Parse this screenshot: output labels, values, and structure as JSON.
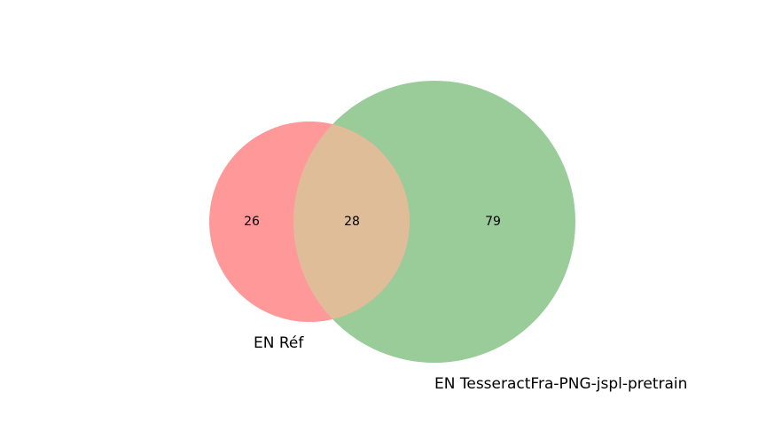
{
  "chart_data": {
    "type": "venn2",
    "sets": [
      {
        "name": "EN Réf",
        "color": "#ff9999",
        "only": 26
      },
      {
        "name": "EN TesseractFra-PNG-jspl-pretrain",
        "color": "#99cc99",
        "only": 79
      }
    ],
    "intersection": 28,
    "overlap_color": "#e0bd99"
  }
}
